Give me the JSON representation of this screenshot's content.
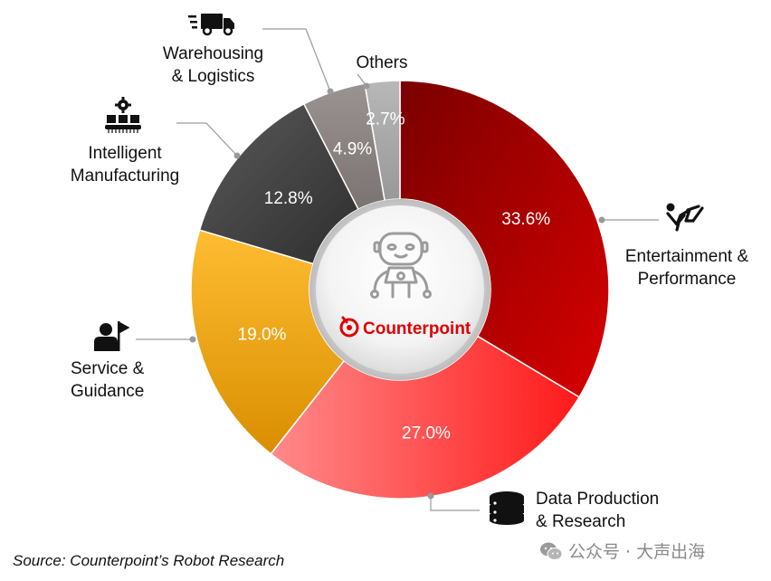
{
  "chart_data": {
    "type": "donut",
    "slices": [
      {
        "label_lines": [
          "Entertainment &",
          "Performance"
        ],
        "value": 33.6,
        "value_text": "33.6%",
        "color": "#c00000",
        "icon": "dancer-icon"
      },
      {
        "label_lines": [
          "Data Production",
          "& Research"
        ],
        "value": 27.0,
        "value_text": "27.0%",
        "color": "#ff3333",
        "icon": "database-icon"
      },
      {
        "label_lines": [
          "Service &",
          "Guidance"
        ],
        "value": 19.0,
        "value_text": "19.0%",
        "color": "#f5a300",
        "icon": "guide-flag-icon"
      },
      {
        "label_lines": [
          "Intelligent",
          "Manufacturing"
        ],
        "value": 12.8,
        "value_text": "12.8%",
        "color": "#4a4a4a",
        "icon": "conveyor-gear-icon"
      },
      {
        "label_lines": [
          "Warehousing",
          "& Logistics"
        ],
        "value": 4.9,
        "value_text": "4.9%",
        "color": "#8c8584",
        "icon": "truck-icon"
      },
      {
        "label_lines": [
          "Others"
        ],
        "value": 2.7,
        "value_text": "2.7%",
        "color": "#a6a6a6",
        "icon": ""
      }
    ],
    "center_logo_text": "Counterpoint",
    "center_icon": "robot-icon"
  },
  "source": "Source: Counterpoint’s Robot Research",
  "watermark": "公众号 · 大声出海"
}
